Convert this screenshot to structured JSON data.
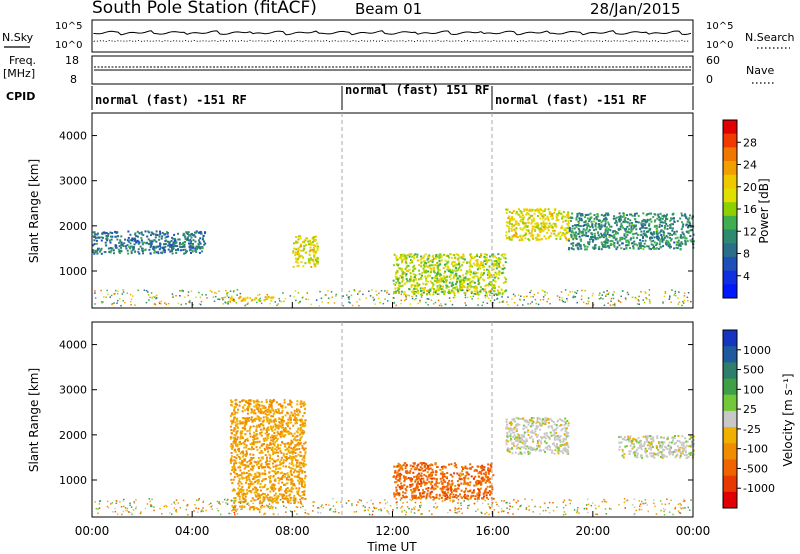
{
  "header": {
    "station": "South Pole Station (fitACF)",
    "beam": "Beam 01",
    "date": "28/Jan/2015"
  },
  "panels": {
    "nsky": {
      "label": "N.Sky",
      "ticks": [
        "10^5",
        "10^0"
      ],
      "right_ticks": [
        "10^5",
        "10^0"
      ],
      "right_label": "N.Search"
    },
    "freq": {
      "label1": "Freq.",
      "label2": "[MHz]",
      "ticks": [
        "18",
        "8"
      ],
      "right_ticks": [
        "60",
        "0"
      ],
      "right_label": "Nave"
    },
    "cpid": {
      "label": "CPID",
      "segments": [
        {
          "text": "normal (fast) -151 RF",
          "start_hour": 0,
          "end_hour": 10
        },
        {
          "text": "normal (fast) 151 RF",
          "start_hour": 10,
          "end_hour": 16
        },
        {
          "text": "normal (fast) -151 RF",
          "start_hour": 16,
          "end_hour": 24
        }
      ]
    }
  },
  "power_scale": {
    "label": "Power [dB]",
    "ticks": [
      "28",
      "24",
      "20",
      "16",
      "12",
      "8",
      "4"
    ],
    "colors": [
      "#e00000",
      "#f03a00",
      "#f07800",
      "#f0a000",
      "#f0c800",
      "#e0e000",
      "#8fd000",
      "#3fae50",
      "#2e8a6e",
      "#2b6e8a",
      "#1f4fb8",
      "#1030e0",
      "#0018ff"
    ]
  },
  "velocity_scale": {
    "label": "Velocity [m s⁻¹]",
    "ticks": [
      "1000",
      "500",
      "100",
      "25",
      "-25",
      "-100",
      "-500",
      "-1000"
    ],
    "colors": [
      "#1535c0",
      "#1f5a9e",
      "#2d7e6c",
      "#3f9f46",
      "#73c83a",
      "#c8c8c8",
      "#f0b000",
      "#f08c00",
      "#f06400",
      "#e83a00",
      "#e00000"
    ]
  },
  "chart_data": [
    {
      "type": "heatmap",
      "title": "",
      "xlabel": "",
      "ylabel": "Slant Range [km]",
      "xlim": [
        0,
        24
      ],
      "ylim": [
        180,
        4500
      ],
      "yticks": [
        1000,
        2000,
        3000,
        4000
      ],
      "colorbar_label": "Power [dB]",
      "colorbar_range": [
        0,
        30
      ],
      "regions": [
        {
          "name": "",
          "t_start": 0.0,
          "t_end": 4.5,
          "range_km": [
            1400,
            1900
          ],
          "value": 8
        },
        {
          "name": "",
          "t_start": 5.5,
          "t_end": 7.2,
          "range_km": [
            350,
            450
          ],
          "value": 20
        },
        {
          "name": "",
          "t_start": 8.0,
          "t_end": 9.0,
          "range_km": [
            1100,
            1800
          ],
          "value": 18
        },
        {
          "name": "",
          "t_start": 12.0,
          "t_end": 16.5,
          "range_km": [
            500,
            1400
          ],
          "value": 16
        },
        {
          "name": "",
          "t_start": 16.5,
          "t_end": 19.0,
          "range_km": [
            1700,
            2400
          ],
          "value": 18
        },
        {
          "name": "",
          "t_start": 19.0,
          "t_end": 24.0,
          "range_km": [
            1500,
            2300
          ],
          "value": 10
        }
      ]
    },
    {
      "type": "heatmap",
      "title": "",
      "xlabel": "Time UT",
      "ylabel": "Slant Range [km]",
      "xlim": [
        0,
        24
      ],
      "ylim": [
        180,
        4500
      ],
      "yticks": [
        1000,
        2000,
        3000,
        4000
      ],
      "xticks": [
        "00:00",
        "04:00",
        "08:00",
        "12:00",
        "16:00",
        "20:00",
        "00:00"
      ],
      "colorbar_label": "Velocity [m s⁻¹]",
      "colorbar_range": [
        -1000,
        1000
      ],
      "regions": [
        {
          "name": "",
          "t_start": 5.5,
          "t_end": 8.5,
          "range_km": [
            500,
            2800
          ],
          "value": -300
        },
        {
          "name": "",
          "t_start": 12.0,
          "t_end": 16.0,
          "range_km": [
            600,
            1400
          ],
          "value": -600
        },
        {
          "name": "",
          "t_start": 16.5,
          "t_end": 19.0,
          "range_km": [
            1600,
            2400
          ],
          "value": 0
        },
        {
          "name": "",
          "t_start": 21.0,
          "t_end": 24.0,
          "range_km": [
            1500,
            2000
          ],
          "value": 0
        },
        {
          "name": "",
          "t_start": 5.5,
          "t_end": 7.2,
          "range_km": [
            350,
            450
          ],
          "value": -200
        }
      ]
    }
  ]
}
